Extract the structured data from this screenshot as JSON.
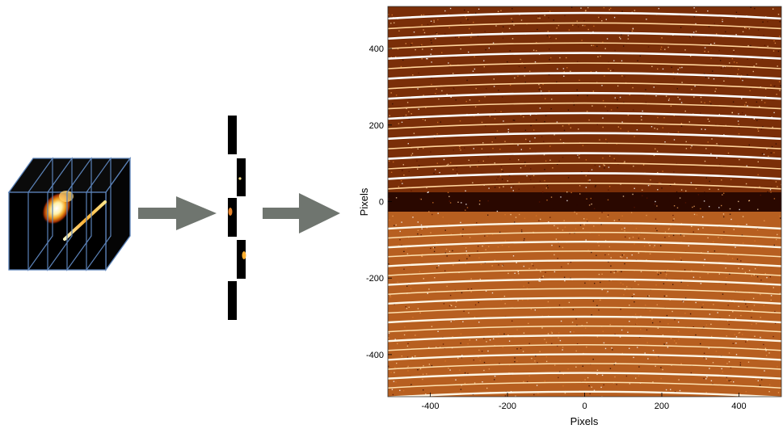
{
  "diagram": {
    "stages": [
      {
        "name": "data-cube",
        "description_visible": false
      },
      {
        "name": "image-slicer-slices",
        "description_visible": false
      },
      {
        "name": "detector-image",
        "description_visible": false
      }
    ],
    "cube_slices": 5,
    "slicer_slits": 5,
    "arrow_color": "#6f756f",
    "cube_edge_color": "#5b82b8",
    "colormap": [
      "#000000",
      "#5a1400",
      "#a83d00",
      "#e8832a",
      "#ffd88a",
      "#ffffff"
    ]
  },
  "detector": {
    "xlabel": "Pixels",
    "ylabel": "Pixels",
    "xlim": [
      -510,
      510
    ],
    "ylim": [
      -510,
      510
    ],
    "x_ticks": [
      "-400",
      "-200",
      "0",
      "200",
      "400"
    ],
    "y_ticks": [
      "400",
      "200",
      "0",
      "-200",
      "-400"
    ]
  }
}
